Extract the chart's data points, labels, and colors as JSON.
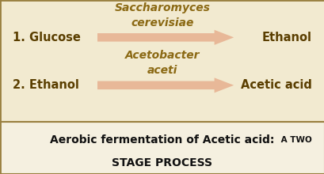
{
  "bg_top": "#f2ead0",
  "bg_bottom": "#f5f0e0",
  "border_color": "#9a8040",
  "arrow_color": "#d4956a",
  "arrow_color_light": "#e8b898",
  "text_color_dark": "#5a3e00",
  "italic_color": "#8b6914",
  "text_color_black": "#111111",
  "step1_label": "1. Glucose",
  "step1_result": "Ethanol",
  "step1_org1": "Saccharomyces",
  "step1_org2": "cerevisiae",
  "step2_label": "2. Ethanol",
  "step2_result": "Acetic acid",
  "step2_org1": "Acetobacter",
  "step2_org2": "aceti",
  "caption_main": "Aerobic fermentation of Acetic acid:",
  "caption_suffix": " A TWO",
  "caption_line2": "STAGE PROCESS",
  "figsize": [
    4.1,
    2.2
  ],
  "dpi": 100
}
